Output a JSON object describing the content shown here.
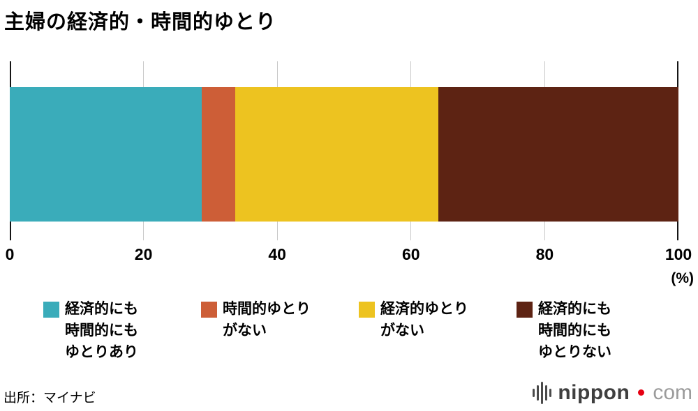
{
  "title": "主婦の経済的・時間的ゆとり",
  "source": "出所：マイナビ",
  "logo": {
    "word": "nippon",
    "tld": "com"
  },
  "chart_data": {
    "type": "bar",
    "orientation": "horizontal",
    "stacked": true,
    "title": "主婦の経済的・時間的ゆとり",
    "unit": "(%)",
    "xlim": [
      0,
      100
    ],
    "x_ticks": [
      0,
      20,
      40,
      60,
      80,
      100
    ],
    "grid": true,
    "legend_position": "bottom",
    "segments": [
      {
        "label": "経済的にも時間的にもゆとりあり",
        "label_lines": [
          "経済的にも",
          "時間的にも",
          "ゆとりあり"
        ],
        "value": 28.7,
        "color": "#3aacba"
      },
      {
        "label": "時間的ゆとりがない",
        "label_lines": [
          "時間的ゆとり",
          "がない"
        ],
        "value": 5.0,
        "color": "#cd5e37"
      },
      {
        "label": "経済的ゆとりがない",
        "label_lines": [
          "経済的ゆとり",
          "がない"
        ],
        "value": 30.4,
        "color": "#edc320"
      },
      {
        "label": "経済的にも時間的にもゆとりない",
        "label_lines": [
          "経済的にも",
          "時間的にも",
          "ゆとりない"
        ],
        "value": 35.9,
        "color": "#5d2313"
      }
    ]
  }
}
